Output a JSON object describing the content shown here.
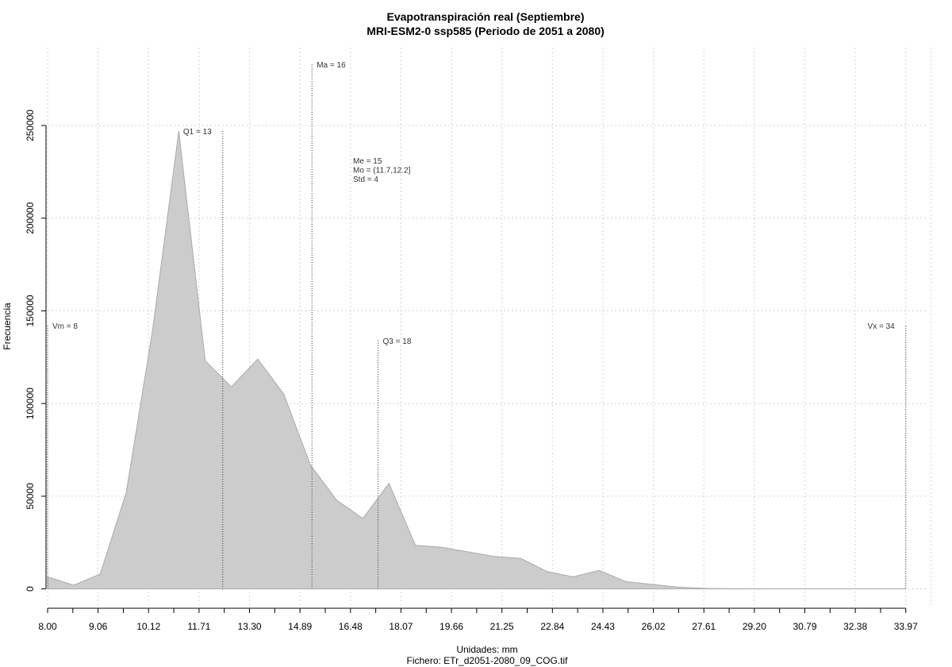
{
  "chart_data": {
    "type": "area",
    "title": "Evapotranspiración real (Septiembre)",
    "subtitle": "MRI-ESM2-0 ssp585 (Periodo de 2051 a 2080)",
    "xlabel": "Unidades: mm",
    "ylabel": "Frecuencia",
    "footer": "Fichero: ETr_d2051-2080_09_COG.tif",
    "xlim": [
      8.0,
      34.6
    ],
    "ylim": [
      -10000,
      292000
    ],
    "x_tick_labels": [
      "8.00",
      "9.06",
      "10.12",
      "11.71",
      "13.30",
      "14.89",
      "16.48",
      "18.07",
      "19.66",
      "21.25",
      "22.84",
      "24.43",
      "26.02",
      "27.61",
      "29.20",
      "30.79",
      "32.38",
      "33.97"
    ],
    "y_ticks": [
      0,
      50000,
      100000,
      150000,
      200000,
      250000
    ],
    "y_tick_labels": [
      "0",
      "50000",
      "100000",
      "150000",
      "200000",
      "250000"
    ],
    "grid": true,
    "fill_color": "#cccccc",
    "line_color": "#aaaaaa",
    "x": [
      8.0,
      8.79,
      9.59,
      10.38,
      11.18,
      11.97,
      12.77,
      13.56,
      14.36,
      15.15,
      15.95,
      16.74,
      17.54,
      18.33,
      19.13,
      19.92,
      20.72,
      21.51,
      22.31,
      23.1,
      23.9,
      24.69,
      25.49,
      26.28,
      27.08,
      27.87,
      28.67,
      29.46,
      30.26,
      31.05,
      31.85,
      32.64,
      33.44,
      33.97
    ],
    "values": [
      6500,
      2000,
      8000,
      52000,
      140000,
      247000,
      123000,
      109000,
      124000,
      105000,
      67000,
      48000,
      38000,
      57000,
      23500,
      22500,
      20000,
      17500,
      16500,
      9500,
      6500,
      10000,
      4000,
      2500,
      1000,
      300,
      100,
      50,
      20,
      10,
      5,
      2,
      1,
      0
    ],
    "markers": [
      {
        "label": "Vm = 8",
        "x": 8.0,
        "ytop": 142000,
        "side": "right"
      },
      {
        "label": "Q1 = 13",
        "x": 13.3,
        "ytop": 247000,
        "side": "left"
      },
      {
        "label": "Ma = 16",
        "x": 16.0,
        "ytop": 283000,
        "side": "right"
      },
      {
        "label": "Q3 = 18",
        "x": 18.0,
        "ytop": 134000,
        "side": "right"
      },
      {
        "label": "Vx = 34",
        "x": 33.97,
        "ytop": 142000,
        "side": "left"
      }
    ],
    "stats": [
      "Me = 15",
      "Mo = (11.7,12.2]",
      "Std = 4"
    ]
  }
}
